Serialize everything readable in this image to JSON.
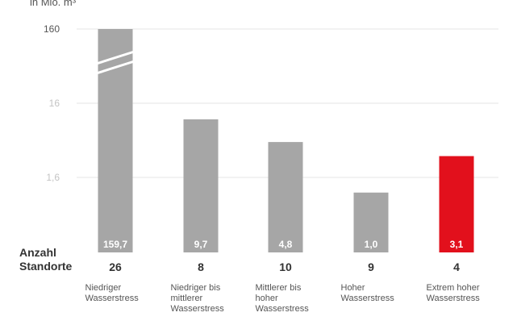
{
  "unit_label": "in Mio. m³",
  "row_label_1": "Anzahl",
  "row_label_2": "Standorte",
  "chart_data": {
    "type": "bar",
    "ylabel": "in Mio. m³",
    "yticks": [
      "160",
      "16",
      "1,6"
    ],
    "scale": "broken-log",
    "categories": [
      [
        "Niedriger",
        "Wasserstress"
      ],
      [
        "Niedriger bis",
        "mittlerer",
        "Wasserstress"
      ],
      [
        "Mittlerer bis",
        "hoher",
        "Wasserstress"
      ],
      [
        "Hoher",
        "Wasserstress"
      ],
      [
        "Extrem hoher",
        "Wasserstress"
      ]
    ],
    "values": [
      159.7,
      9.7,
      4.8,
      1.0,
      3.1
    ],
    "value_labels": [
      "159,7",
      "9,7",
      "4,8",
      "1,0",
      "3,1"
    ],
    "site_counts": [
      "26",
      "8",
      "10",
      "9",
      "4"
    ],
    "axis_break_on_first_bar": true,
    "colors": {
      "default": "#a6a6a6",
      "highlight": "#e2101c",
      "highlight_index": 4,
      "grid": "#e6e6e6",
      "tick_text": "#c4c4c4"
    }
  }
}
